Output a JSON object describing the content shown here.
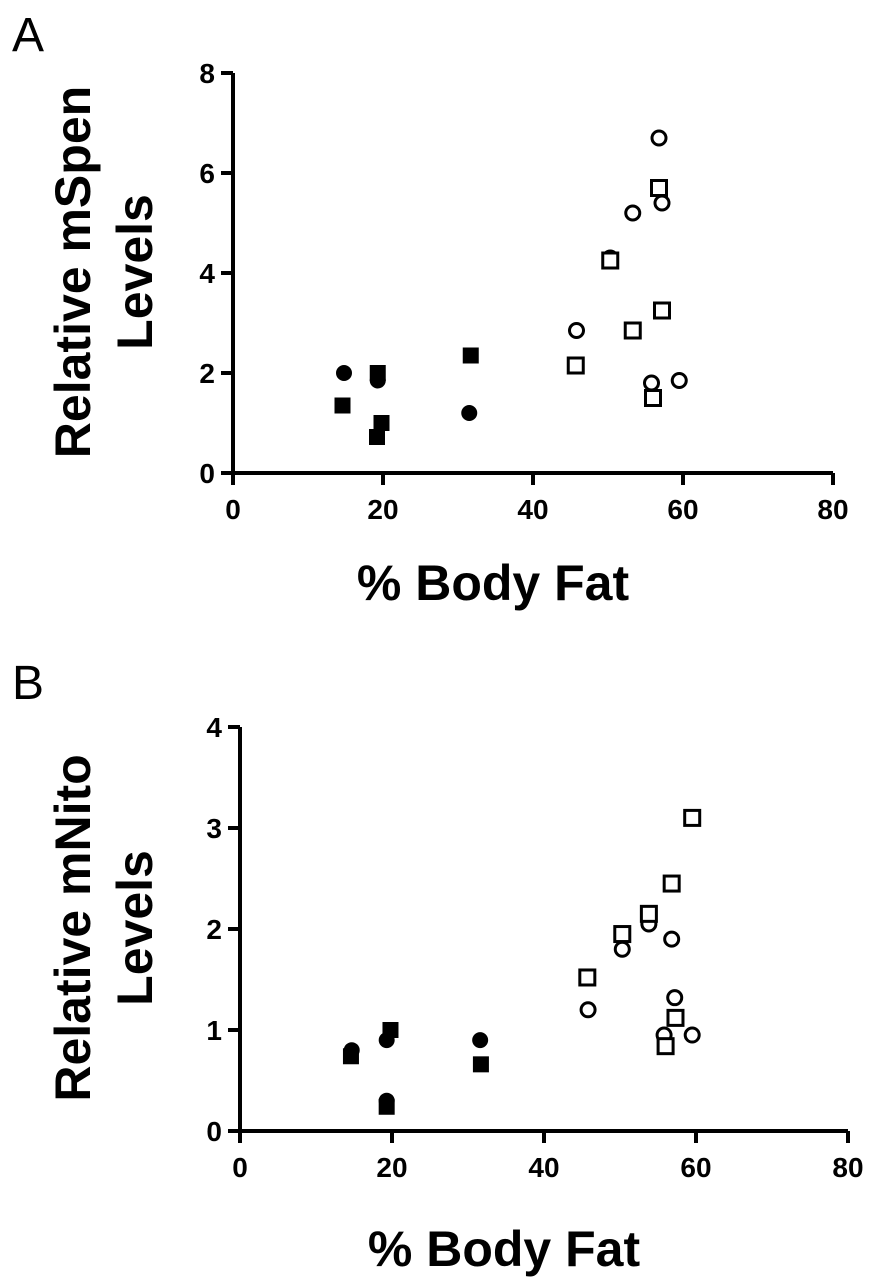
{
  "panel_a": {
    "letter": "A"
  },
  "panel_b": {
    "letter": "B"
  },
  "chart_data": [
    {
      "type": "scatter",
      "panel": "A",
      "xlabel": "% Body Fat",
      "ylabel_lines": [
        "Relative mSpen",
        "Levels"
      ],
      "xlim": [
        0,
        80
      ],
      "ylim": [
        0,
        8
      ],
      "xticks": [
        0,
        20,
        40,
        60,
        80
      ],
      "yticks": [
        0,
        2,
        4,
        6,
        8
      ],
      "grid": false,
      "legend": "none",
      "series": [
        {
          "marker": "filled-circle",
          "color": "#000000",
          "points": [
            [
              14.8,
              2.0
            ],
            [
              19.3,
              1.85
            ],
            [
              31.5,
              1.2
            ]
          ]
        },
        {
          "marker": "filled-square",
          "color": "#000000",
          "points": [
            [
              14.6,
              1.35
            ],
            [
              19.3,
              2.0
            ],
            [
              19.8,
              1.0
            ],
            [
              19.2,
              0.72
            ],
            [
              31.7,
              2.35
            ]
          ]
        },
        {
          "marker": "open-circle",
          "color": "#000000",
          "points": [
            [
              45.8,
              2.85
            ],
            [
              50.3,
              4.3
            ],
            [
              53.3,
              5.2
            ],
            [
              56.8,
              6.7
            ],
            [
              57.2,
              5.4
            ],
            [
              55.8,
              1.8
            ],
            [
              59.5,
              1.85
            ]
          ]
        },
        {
          "marker": "open-square",
          "color": "#000000",
          "points": [
            [
              45.7,
              2.15
            ],
            [
              50.3,
              4.25
            ],
            [
              53.3,
              2.85
            ],
            [
              56.8,
              5.7
            ],
            [
              57.2,
              3.25
            ],
            [
              56.0,
              1.5
            ]
          ]
        }
      ]
    },
    {
      "type": "scatter",
      "panel": "B",
      "xlabel": "% Body Fat",
      "ylabel_lines": [
        "Relative mNito",
        "Levels"
      ],
      "xlim": [
        0,
        80
      ],
      "ylim": [
        0,
        4
      ],
      "xticks": [
        0,
        20,
        40,
        60,
        80
      ],
      "yticks": [
        0,
        1,
        2,
        3,
        4
      ],
      "grid": false,
      "legend": "none",
      "series": [
        {
          "marker": "filled-circle",
          "color": "#000000",
          "points": [
            [
              14.7,
              0.8
            ],
            [
              19.3,
              0.9
            ],
            [
              19.3,
              0.3
            ],
            [
              31.6,
              0.9
            ]
          ]
        },
        {
          "marker": "filled-square",
          "color": "#000000",
          "points": [
            [
              14.6,
              0.74
            ],
            [
              19.8,
              1.0
            ],
            [
              19.3,
              0.24
            ],
            [
              31.7,
              0.66
            ]
          ]
        },
        {
          "marker": "open-circle",
          "color": "#000000",
          "points": [
            [
              45.8,
              1.2
            ],
            [
              50.3,
              1.8
            ],
            [
              53.8,
              2.05
            ],
            [
              56.8,
              1.9
            ],
            [
              57.2,
              1.32
            ],
            [
              55.8,
              0.95
            ],
            [
              59.5,
              0.95
            ]
          ]
        },
        {
          "marker": "open-square",
          "color": "#000000",
          "points": [
            [
              45.7,
              1.52
            ],
            [
              50.3,
              1.95
            ],
            [
              53.8,
              2.15
            ],
            [
              56.8,
              2.45
            ],
            [
              57.3,
              1.12
            ],
            [
              56.0,
              0.84
            ],
            [
              59.5,
              3.1
            ]
          ]
        }
      ]
    }
  ]
}
